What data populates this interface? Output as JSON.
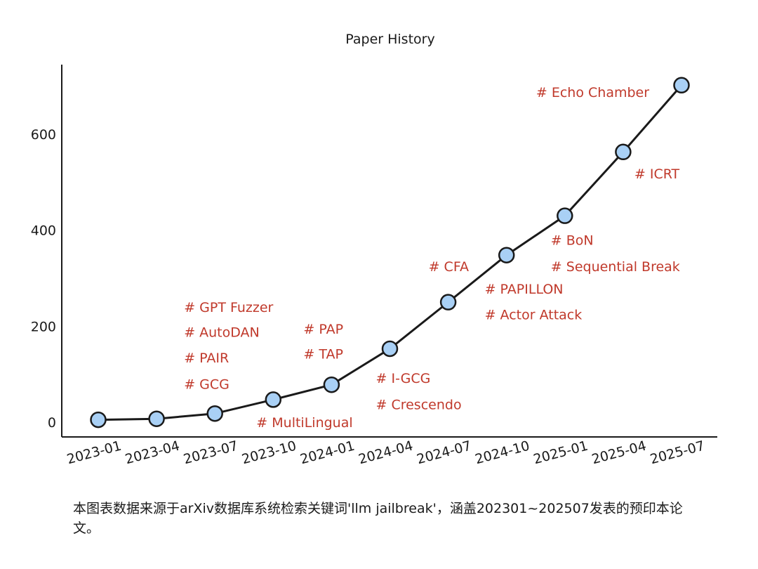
{
  "chart_data": {
    "type": "line",
    "title": "Paper History",
    "xlabel": "",
    "ylabel": "",
    "categories": [
      "2023-01",
      "2023-04",
      "2023-07",
      "2023-10",
      "2024-01",
      "2024-04",
      "2024-07",
      "2024-10",
      "2025-01",
      "2025-04",
      "2025-07"
    ],
    "x_ticks": [
      "2023-01",
      "2023-04",
      "2023-07",
      "2023-10",
      "2024-01",
      "2024-04",
      "2024-07",
      "2024-10",
      "2025-01",
      "2025-04",
      "2025-07"
    ],
    "y_ticks": [
      0,
      200,
      400,
      600
    ],
    "ylim": [
      -30,
      740
    ],
    "grid": false,
    "series": [
      {
        "x": [
          "2023-01",
          "2023-04",
          "2023-07",
          "2023-10",
          "2024-01",
          "2024-04",
          "2024-07",
          "2024-10",
          "2025-01",
          "2025-04",
          "2025-07"
        ],
        "values": [
          5,
          7,
          18,
          47,
          78,
          153,
          250,
          348,
          430,
          563,
          702
        ]
      }
    ],
    "annotations": [
      {
        "text": "# GPT Fuzzer",
        "x": "2023-07",
        "y": 240
      },
      {
        "text": "# AutoDAN",
        "x": "2023-07",
        "y": 188
      },
      {
        "text": "# PAIR",
        "x": "2023-07",
        "y": 135
      },
      {
        "text": "# GCG",
        "x": "2023-07",
        "y": 80
      },
      {
        "text": "# MultiLingual",
        "x": "2023-10",
        "y": 0
      },
      {
        "text": "# PAP",
        "x": "2024-01",
        "y": 195
      },
      {
        "text": "# TAP",
        "x": "2024-01",
        "y": 143
      },
      {
        "text": "# I-GCG",
        "x": "2024-04",
        "y": 92
      },
      {
        "text": "# Crescendo",
        "x": "2024-04",
        "y": 37
      },
      {
        "text": "# CFA",
        "x": "2024-07",
        "y": 325
      },
      {
        "text": "# PAPILLON",
        "x": "2024-07",
        "y": 278
      },
      {
        "text": "# Actor Attack",
        "x": "2024-07",
        "y": 225
      },
      {
        "text": "# BoN",
        "x": "2025-01",
        "y": 380
      },
      {
        "text": "# Sequential Break",
        "x": "2025-01",
        "y": 325
      },
      {
        "text": "# ICRT",
        "x": "2025-04",
        "y": 518
      },
      {
        "text": "# Echo Chamber",
        "x": "2025-04",
        "y": 688
      }
    ],
    "colors": {
      "line": "#1a1a1a",
      "marker_fill": "#a9d0f5",
      "marker_edge": "#1a1a1a",
      "annotation": "#c0392b",
      "axis": "#1a1a1a"
    }
  },
  "caption": "本图表数据来源于arXiv数据库系统检索关键词'llm jailbreak'，涵盖202301~202507发表的预印本论文。"
}
